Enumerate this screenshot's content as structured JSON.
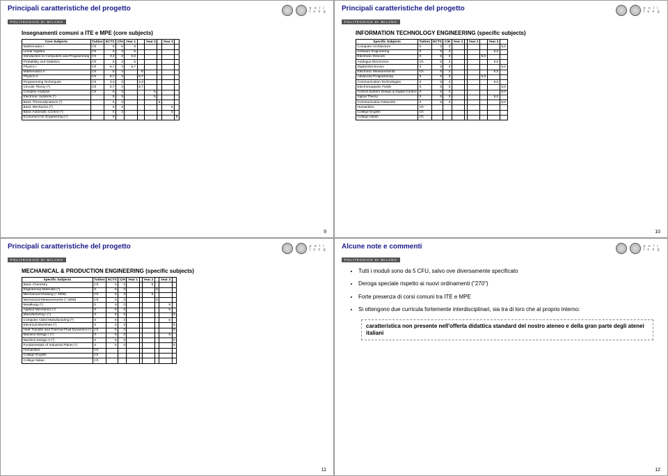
{
  "brand": {
    "poli1": "p o l i",
    "poli2": "t o n g",
    "bar": "POLITECNICO DI MILANO"
  },
  "s9": {
    "title": "Principali caratteristiche del progetto",
    "subtitle": "Insegnamenti comuni a ITE e MPE (core subjects)",
    "page": "9",
    "cols": [
      "Core Subjects",
      "Tuition",
      "ECTS",
      "C/H",
      "Year 1",
      "",
      "Year 2",
      "",
      "Year 3",
      ""
    ],
    "rows": [
      [
        "Mathematics I",
        "Ch",
        "8",
        "5",
        "8",
        "",
        "",
        "",
        "",
        ""
      ],
      [
        "Linear Algebra",
        "Ch",
        "5",
        "3",
        "5",
        "",
        "",
        "",
        "",
        ""
      ],
      [
        "Introduction to Computers and Programming",
        "Ch",
        "3,3",
        "2",
        "3,3",
        "",
        "",
        "",
        "",
        ""
      ],
      [
        "Probability and Statistics",
        "Ch",
        "5",
        "3",
        "5",
        "",
        "",
        "",
        "",
        ""
      ],
      [
        "Physics I",
        "Ch",
        "6,7",
        "4",
        "6,7",
        "",
        "",
        "",
        "",
        ""
      ],
      [
        "Mathematics II",
        "Ch",
        "8",
        "4",
        "",
        "8",
        "",
        "",
        "",
        ""
      ],
      [
        "Physics II",
        "Ch",
        "6,7",
        "4",
        "",
        "6,7",
        "",
        "",
        "",
        ""
      ],
      [
        "Programming Techniques",
        "Ch",
        "3,3",
        "2",
        "",
        "3,3",
        "",
        "",
        "",
        ""
      ],
      [
        "Circuits Theory (*)",
        "Ch",
        "6,7",
        "4",
        "",
        "6,7",
        "",
        "",
        "",
        ""
      ],
      [
        "Complex Analysis",
        "Ch",
        "5",
        "3",
        "",
        "",
        "5",
        "",
        "",
        ""
      ],
      [
        "Electronic Systems (*)",
        "",
        "5",
        "3",
        "",
        "",
        "5",
        "",
        "",
        ""
      ],
      [
        "Basic Thermodynamics (*)",
        "",
        "5",
        "3",
        "",
        "",
        "",
        "5",
        "",
        ""
      ],
      [
        "Basic Mechanics (*)",
        "",
        "5",
        "3",
        "",
        "",
        "",
        "",
        "5",
        ""
      ],
      [
        "Basic Automatic Control (*)",
        "",
        "5",
        "3",
        "",
        "",
        "",
        "",
        "5",
        ""
      ],
      [
        "Economics for Engineering (*)",
        "",
        "5",
        "",
        "",
        "",
        "",
        "",
        "",
        "5"
      ]
    ]
  },
  "s10": {
    "title": "Principali caratteristiche del progetto",
    "subtitle": "INFORMATION TECHNOLOGY ENGINEERING (specific subjects)",
    "page": "10",
    "cols": [
      "Specific Subjects",
      "Tuition",
      "ECTS",
      "C/H",
      "Year 1",
      "",
      "Year 2",
      "",
      "Year 3",
      ""
    ],
    "rows": [
      [
        "Computer Architecture",
        "It",
        "5",
        "3",
        "",
        "",
        "",
        "",
        "",
        "5,0"
      ],
      [
        "Software Engineering",
        "It",
        "5",
        "3",
        "",
        "",
        "",
        "",
        "5,0",
        ""
      ],
      [
        "Electronic Devices",
        "It",
        "5",
        "3",
        "",
        "",
        "",
        "5,0",
        "",
        ""
      ],
      [
        "Analogue Electronics",
        "Ch",
        "5",
        "3",
        "",
        "",
        "",
        "",
        "5,0",
        ""
      ],
      [
        "Digital Electronics",
        "It",
        "5",
        "3",
        "",
        "",
        "",
        "",
        "",
        "5,0"
      ],
      [
        "Electronic Measurements",
        "Ch",
        "5",
        "3",
        "",
        "",
        "",
        "",
        "5,0",
        ""
      ],
      [
        "Advanced Programming",
        "It",
        "5",
        "3",
        "",
        "",
        "",
        "5,0",
        "",
        ""
      ],
      [
        "Communication Technologies",
        "It",
        "5",
        "3",
        "",
        "",
        "",
        "",
        "5,0",
        ""
      ],
      [
        "Electromagnetic Fields",
        "It",
        "5",
        "3",
        "",
        "",
        "",
        "",
        "",
        "5,0"
      ],
      [
        "Control System Design & Digital Control",
        "It",
        "5",
        "3",
        "",
        "",
        "",
        "",
        "",
        "5,0"
      ],
      [
        "Signal Theory",
        "It",
        "5",
        "3",
        "",
        "",
        "",
        "",
        "5,0",
        ""
      ],
      [
        "Communication Networks",
        "It",
        "5",
        "3",
        "",
        "",
        "",
        "",
        "",
        "5,0"
      ],
      [
        "Humanities",
        "Ch",
        "",
        "",
        "",
        "",
        "",
        "",
        "",
        ""
      ],
      [
        "College English",
        "Ch",
        "",
        "",
        "",
        "",
        "",
        "",
        "",
        ""
      ],
      [
        "College Italian",
        "Ch",
        "",
        "",
        "",
        "",
        "",
        "",
        "",
        ""
      ]
    ]
  },
  "s11": {
    "title": "Principali caratteristiche del progetto",
    "subtitle": "MECHANICAL & PRODUCTION ENGINEERING (specific subjects)",
    "page": "11",
    "cols": [
      "Specific Subjects",
      "Tuition",
      "ECTS",
      "C/H",
      "Year 1",
      "",
      "Year 2",
      "",
      "Year 3",
      ""
    ],
    "rows": [
      [
        "Basic Chemistry",
        "Ch",
        "5",
        "3",
        "",
        "",
        "5",
        "",
        "",
        ""
      ],
      [
        "Engineering Materials (*)",
        "It",
        "5",
        "3",
        "",
        "",
        "",
        "5",
        "",
        ""
      ],
      [
        "Mechanical Drawing (* 2008)",
        "Ch",
        "5",
        "3",
        "",
        "",
        "5",
        "",
        "",
        ""
      ],
      [
        "Mechanical Measurements (* 2008)",
        "Ch",
        "5",
        "3",
        "",
        "",
        "",
        "5",
        "",
        ""
      ],
      [
        "Metallurgy (*)",
        "It",
        "5",
        "3",
        "",
        "",
        "",
        "",
        "5",
        ""
      ],
      [
        "Applied Mechanics (*)",
        "It",
        "5",
        "3",
        "",
        "",
        "",
        "",
        "5",
        ""
      ],
      [
        "Manufacturing I (*)",
        "It",
        "5",
        "3",
        "",
        "",
        "",
        "",
        "",
        "5"
      ],
      [
        "Computer Aided Manufacturing (*)",
        "It",
        "5",
        "3",
        "",
        "",
        "",
        "",
        "5",
        ""
      ],
      [
        "Electrical Machines (*)",
        "It",
        "5",
        "3",
        "",
        "",
        "",
        "",
        "",
        "5"
      ],
      [
        "Heat Transfer and Thermal Fluid Dynamics (*)",
        "Ch",
        "5",
        "3",
        "",
        "",
        "",
        "",
        "",
        "5"
      ],
      [
        "Machine Design I (*)",
        "It",
        "5",
        "3",
        "",
        "",
        "",
        "",
        "5",
        ""
      ],
      [
        "Machine Design II (*)",
        "It",
        "5",
        "3",
        "",
        "",
        "",
        "",
        "",
        "5"
      ],
      [
        "Fundamentals of Industrial Plants (*)",
        "It",
        "5",
        "3",
        "",
        "",
        "",
        "",
        "",
        "5"
      ],
      [
        "Humanities",
        "Ch",
        "",
        "",
        "",
        "",
        "",
        "",
        "",
        ""
      ],
      [
        "College English",
        "Ch",
        "",
        "",
        "",
        "",
        "",
        "",
        "",
        ""
      ],
      [
        "College Italian",
        "Ch",
        "",
        "",
        "",
        "",
        "",
        "",
        "",
        ""
      ]
    ]
  },
  "s12": {
    "title": "Alcune note e commenti",
    "page": "12",
    "bullets": [
      "Tutti i moduli sono da 5 CFU, salvo ove diversamente specificato",
      "Deroga speciale rispetto ai nuovi ordinamenti (\"270\")",
      "Forte presenza di corsi comuni tra ITE e MPE",
      "Si ottengono due curricula fortemente interdisciplinari, sia tra di loro che al proprio interno:"
    ],
    "boxed": "caratteristica non presente nell'offerta didattica standard del nostro ateneo e della gran parte degli atenei italiani"
  }
}
